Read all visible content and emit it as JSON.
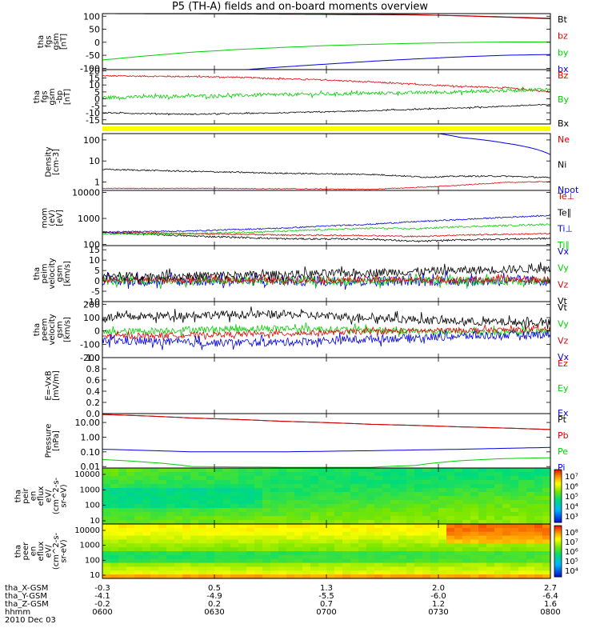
{
  "title": "P5 (TH-A) fields and on-board moments overview",
  "colors": {
    "black": "#000000",
    "red": "#e00000",
    "green": "#00d000",
    "blue": "#0000e0",
    "yellow": "#ffff00"
  },
  "chart_data": [
    {
      "type": "line",
      "ylabel_lines": [
        "tha",
        "fgs",
        "gsm",
        "[nT]"
      ],
      "yticks": [
        "100",
        "50",
        "0",
        "-50",
        "-100"
      ],
      "ylim": [
        -105,
        110
      ],
      "series": [
        {
          "name": "Bt",
          "color": "black",
          "values": [
            [
              0,
              110
            ],
            [
              1,
              109
            ],
            [
              2,
              108
            ],
            [
              3,
              106
            ],
            [
              3.5,
              105
            ],
            [
              4,
              102
            ],
            [
              4.5,
              97
            ],
            [
              5,
              92
            ]
          ]
        },
        {
          "name": "bz",
          "color": "red",
          "values": [
            [
              0,
              112
            ],
            [
              1,
              111
            ],
            [
              2,
              110
            ],
            [
              3,
              108
            ],
            [
              3.5,
              106
            ],
            [
              4,
              101
            ],
            [
              4.5,
              96
            ],
            [
              5,
              90
            ]
          ]
        },
        {
          "name": "by",
          "color": "green",
          "values": [
            [
              0,
              -68
            ],
            [
              0.5,
              -52
            ],
            [
              1,
              -38
            ],
            [
              1.5,
              -28
            ],
            [
              2,
              -20
            ],
            [
              2.5,
              -13
            ],
            [
              3,
              -8
            ],
            [
              3.5,
              -4
            ],
            [
              4,
              -1
            ],
            [
              4.5,
              1
            ],
            [
              5,
              1
            ]
          ]
        },
        {
          "name": "bx",
          "color": "blue",
          "values": [
            [
              1.6,
              -105
            ],
            [
              2,
              -95
            ],
            [
              2.5,
              -84
            ],
            [
              3,
              -73
            ],
            [
              3.5,
              -64
            ],
            [
              4,
              -56
            ],
            [
              4.5,
              -50
            ],
            [
              5,
              -47
            ]
          ]
        }
      ]
    },
    {
      "type": "line",
      "ylabel_lines": [
        "tha",
        "fgs",
        "gsm",
        "-bp",
        "[nT]"
      ],
      "yticks": [
        "20",
        "15",
        "10",
        "5",
        "0",
        "-5",
        "-10",
        "-15"
      ],
      "ylim": [
        -18,
        21
      ],
      "series": [
        {
          "name": "Bz",
          "color": "red",
          "values": [
            [
              0,
              16.5
            ],
            [
              1,
              16
            ],
            [
              1.5,
              15.5
            ],
            [
              2,
              14.5
            ],
            [
              2.5,
              13.5
            ],
            [
              3,
              12
            ],
            [
              3.5,
              10.5
            ],
            [
              4,
              9
            ],
            [
              4.5,
              8
            ],
            [
              5,
              5
            ]
          ],
          "noise": 0.5
        },
        {
          "name": "By",
          "color": "green",
          "values": [
            [
              0,
              1
            ],
            [
              1,
              2
            ],
            [
              2,
              3
            ],
            [
              3,
              4
            ],
            [
              3.5,
              4.5
            ],
            [
              4,
              5
            ],
            [
              4.5,
              6
            ],
            [
              5,
              7
            ]
          ],
          "noise": 1.2
        },
        {
          "name": "Bx",
          "color": "black",
          "values": [
            [
              0,
              -10
            ],
            [
              1,
              -11
            ],
            [
              2,
              -10
            ],
            [
              3,
              -8.5
            ],
            [
              4,
              -6.5
            ],
            [
              5,
              -4
            ]
          ],
          "noise": 0.4
        }
      ]
    },
    {
      "type": "line",
      "ylabel_lines": [
        "Density",
        "[cm-3]"
      ],
      "ylog": true,
      "yticks": [
        "100",
        "10",
        "1"
      ],
      "ylim": [
        0.4,
        200
      ],
      "series": [
        {
          "name": "Ne",
          "color": "red",
          "values": [
            [
              0,
              0.5
            ],
            [
              1,
              0.5
            ],
            [
              2,
              0.48
            ],
            [
              3,
              0.45
            ],
            [
              3.5,
              0.55
            ],
            [
              4,
              0.7
            ],
            [
              4.5,
              0.95
            ],
            [
              5,
              1.05
            ]
          ],
          "noise": 0.03
        },
        {
          "name": "Ni",
          "color": "black",
          "values": [
            [
              0,
              4
            ],
            [
              1,
              3.2
            ],
            [
              2,
              2.6
            ],
            [
              3,
              2.3
            ],
            [
              3.4,
              1.9
            ],
            [
              3.6,
              1.7
            ],
            [
              4,
              1.9
            ],
            [
              4.5,
              1.9
            ],
            [
              5,
              1.6
            ]
          ],
          "noise": 0.05
        },
        {
          "name": "Npot",
          "color": "blue",
          "values": [
            [
              3.75,
              200
            ],
            [
              4,
              130
            ],
            [
              4.5,
              70
            ],
            [
              5,
              20
            ]
          ]
        }
      ]
    },
    {
      "type": "line",
      "ylabel_lines": [
        "mom",
        "(eV)",
        "[eV]"
      ],
      "ylog": true,
      "yticks": [
        "10000",
        "1000",
        "100"
      ],
      "ylim": [
        90,
        12000
      ],
      "series": [
        {
          "name": "Te⊥",
          "color": "red",
          "values": [
            [
              0,
              300
            ],
            [
              1,
              260
            ],
            [
              2,
              230
            ],
            [
              3,
              220
            ],
            [
              3.5,
              200
            ],
            [
              4,
              230
            ],
            [
              5,
              260
            ]
          ],
          "noise": 0.04
        },
        {
          "name": "Te∥",
          "color": "black",
          "values": [
            [
              0,
              280
            ],
            [
              1,
              210
            ],
            [
              2,
              165
            ],
            [
              3,
              160
            ],
            [
              3.5,
              130
            ],
            [
              4,
              150
            ],
            [
              5,
              170
            ]
          ],
          "noise": 0.05
        },
        {
          "name": "Ti⊥",
          "color": "blue",
          "values": [
            [
              0,
              300
            ],
            [
              1,
              330
            ],
            [
              2,
              420
            ],
            [
              3,
              600
            ],
            [
              4,
              900
            ],
            [
              5,
              1300
            ]
          ],
          "noise": 0.04
        },
        {
          "name": "Ti∥",
          "color": "green",
          "values": [
            [
              0,
              260
            ],
            [
              1,
              260
            ],
            [
              2,
              320
            ],
            [
              3,
              420
            ],
            [
              3.5,
              400
            ],
            [
              4,
              480
            ],
            [
              4.5,
              530
            ],
            [
              5,
              600
            ]
          ],
          "noise": 0.05
        }
      ]
    },
    {
      "type": "line",
      "ylabel_lines": [
        "tha",
        "peim",
        "velocity",
        "gsm",
        "[km/s]"
      ],
      "yticks": [
        "15",
        "10",
        "5",
        "0",
        "-5",
        "-10"
      ],
      "ylim": [
        -10,
        17
      ],
      "series": [
        {
          "name": "Vx",
          "color": "blue",
          "values": [
            [
              0,
              0
            ],
            [
              5,
              0
            ]
          ],
          "noise": 2.5
        },
        {
          "name": "Vy",
          "color": "green",
          "values": [
            [
              0,
              0
            ],
            [
              5,
              0
            ]
          ],
          "noise": 2
        },
        {
          "name": "Vz",
          "color": "red",
          "values": [
            [
              0,
              0.5
            ],
            [
              5,
              0.5
            ]
          ],
          "noise": 1.5
        },
        {
          "name": "Vt",
          "color": "black",
          "values": [
            [
              0,
              2
            ],
            [
              2,
              3
            ],
            [
              3,
              4
            ],
            [
              4,
              5
            ],
            [
              5,
              6
            ]
          ],
          "noise": 2
        }
      ]
    },
    {
      "type": "line",
      "ylabel_lines": [
        "tha",
        "peem",
        "velocity",
        "gsm",
        "[km/s]"
      ],
      "yticks": [
        "200",
        "100",
        "0",
        "-100",
        "-200"
      ],
      "ylim": [
        -200,
        220
      ],
      "series": [
        {
          "name": "Vt",
          "color": "black",
          "values": [
            [
              0,
              100
            ],
            [
              1,
              120
            ],
            [
              2,
              125
            ],
            [
              3,
              100
            ],
            [
              4,
              70
            ],
            [
              5,
              60
            ]
          ],
          "noise": 30
        },
        {
          "name": "Vy",
          "color": "green",
          "values": [
            [
              0,
              -10
            ],
            [
              1,
              10
            ],
            [
              2,
              20
            ],
            [
              3,
              5
            ],
            [
              4,
              -10
            ],
            [
              5,
              -5
            ]
          ],
          "noise": 25
        },
        {
          "name": "Vz",
          "color": "red",
          "values": [
            [
              0,
              -40
            ],
            [
              1,
              -30
            ],
            [
              2,
              -20
            ],
            [
              3,
              -5
            ],
            [
              4,
              5
            ],
            [
              5,
              10
            ]
          ],
          "noise": 20
        },
        {
          "name": "Vx",
          "color": "blue",
          "values": [
            [
              0,
              -70
            ],
            [
              1,
              -90
            ],
            [
              2,
              -85
            ],
            [
              3,
              -60
            ],
            [
              4,
              -40
            ],
            [
              5,
              -25
            ]
          ],
          "noise": 30
        }
      ]
    },
    {
      "type": "line",
      "ylabel_lines": [
        "E=-VxB",
        "[mV/m]"
      ],
      "yticks": [
        "1.0",
        "0.8",
        "0.6",
        "0.4",
        "0.2",
        "0.0"
      ],
      "ylim": [
        0,
        1
      ],
      "series": [
        {
          "name": "Ez",
          "color": "red",
          "values": []
        },
        {
          "name": "Ey",
          "color": "green",
          "values": []
        },
        {
          "name": "Ex",
          "color": "blue",
          "values": []
        }
      ]
    },
    {
      "type": "line",
      "ylabel_lines": [
        "Pressure",
        "[nPa]"
      ],
      "ylog": true,
      "yticks": [
        "10.00",
        "1.00",
        "0.10",
        "0.01"
      ],
      "ylim": [
        0.008,
        40
      ],
      "series": [
        {
          "name": "Pt",
          "color": "black",
          "values": [
            [
              0,
              35
            ],
            [
              1,
              20
            ],
            [
              2,
              12
            ],
            [
              3,
              7.5
            ],
            [
              4,
              5
            ],
            [
              5,
              3.3
            ]
          ]
        },
        {
          "name": "Pb",
          "color": "red",
          "values": [
            [
              0,
              35
            ],
            [
              1,
              20
            ],
            [
              2,
              12
            ],
            [
              3,
              7.5
            ],
            [
              4,
              5
            ],
            [
              5,
              3.3
            ]
          ]
        },
        {
          "name": "Pe",
          "color": "green",
          "values": [
            [
              0,
              0.03
            ],
            [
              1,
              0.01
            ],
            [
              2,
              0.009
            ],
            [
              3,
              0.009
            ],
            [
              3.5,
              0.012
            ],
            [
              4,
              0.025
            ],
            [
              4.5,
              0.035
            ],
            [
              5,
              0.04
            ]
          ]
        },
        {
          "name": "Pi",
          "color": "blue",
          "values": [
            [
              0,
              0.15
            ],
            [
              1,
              0.1
            ],
            [
              2,
              0.1
            ],
            [
              3,
              0.12
            ],
            [
              4,
              0.15
            ],
            [
              5,
              0.2
            ]
          ]
        }
      ]
    },
    {
      "type": "heatmap",
      "ylabel_lines": [
        "tha",
        "peir",
        "en",
        "eflux",
        "eV/",
        "(cm^2-s-",
        "sr-eV)"
      ],
      "yticks": [
        "10000",
        "1000",
        "100",
        "10"
      ],
      "cbar_ticks": [
        "10^7",
        "10^6",
        "10^5",
        "10^4",
        "10^3"
      ]
    },
    {
      "type": "heatmap",
      "ylabel_lines": [
        "tha",
        "peer",
        "en",
        "eflux",
        "eV/",
        "(cm^2-s-",
        "sr-eV)"
      ],
      "yticks": [
        "10000",
        "1000",
        "100",
        "10"
      ],
      "cbar_ticks": [
        "10^8",
        "10^7",
        "10^6",
        "10^5",
        "10^4"
      ]
    }
  ],
  "xaxis": {
    "rows": [
      {
        "label": "tha_X-GSM",
        "values": [
          "-0.3",
          "0.5",
          "1.3",
          "2.0",
          "2.7"
        ]
      },
      {
        "label": "tha_Y-GSM",
        "values": [
          "-4.1",
          "-4.9",
          "-5.5",
          "-6.0",
          "-6.4"
        ]
      },
      {
        "label": "tha_Z-GSM",
        "values": [
          "-0.2",
          "0.2",
          "0.7",
          "1.2",
          "1.6"
        ]
      },
      {
        "label": "hhmm",
        "values": [
          "0600",
          "0630",
          "0700",
          "0730",
          "0800"
        ]
      }
    ],
    "date": "2010 Dec 03"
  }
}
